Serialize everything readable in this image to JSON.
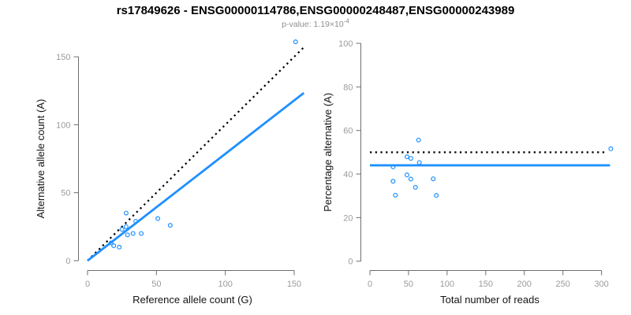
{
  "title": "rs17849626 - ENSG00000114786,ENSG00000248487,ENSG00000243989",
  "subtitle": {
    "text": "p-value: 1.19×10",
    "exponent": "-4"
  },
  "colors": {
    "accent": "#1E90FF",
    "identity_line": "#000000",
    "axis": "#6e6e6e",
    "tick_label": "#9b9b9b",
    "axis_title": "#141414",
    "subtitle": "#8f8f8f"
  },
  "chart_data": [
    {
      "type": "scatter",
      "name": "reference-vs-alternative-count",
      "xlabel": "Reference allele count (G)",
      "ylabel": "Alternative allele count (A)",
      "x_ticks": [
        0,
        50,
        100,
        150
      ],
      "y_ticks": [
        0,
        50,
        100,
        150
      ],
      "xlim": [
        0,
        157
      ],
      "ylim": [
        0,
        165
      ],
      "grid": false,
      "legend": "none",
      "point_color": "#1E90FF",
      "points": [
        [
          151,
          161
        ],
        [
          28,
          35
        ],
        [
          51,
          31
        ],
        [
          35,
          29
        ],
        [
          60,
          26
        ],
        [
          28,
          25
        ],
        [
          25,
          23
        ],
        [
          33,
          20
        ],
        [
          39,
          20
        ],
        [
          29,
          19
        ],
        [
          17,
          13
        ],
        [
          19,
          11
        ],
        [
          23,
          10
        ]
      ],
      "lines": [
        {
          "name": "identity-line",
          "label": "expected 1:1 ratio",
          "style": "dotted",
          "color": "#000000",
          "x1": 0,
          "y1": 0,
          "x2": 157,
          "y2": 157
        },
        {
          "name": "fit-line",
          "label": "observed allelic ratio fit (slope 0.786)",
          "style": "solid",
          "color": "#1E90FF",
          "x1": 0,
          "y1": 0,
          "x2": 157,
          "y2": 123.4
        }
      ]
    },
    {
      "type": "scatter",
      "name": "percentage-alternative-vs-total-reads",
      "xlabel": "Total number of reads",
      "ylabel": "Percentage alternative (A)",
      "x_ticks": [
        0,
        50,
        100,
        150,
        200,
        250,
        300
      ],
      "y_ticks": [
        0,
        20,
        40,
        60,
        80,
        100
      ],
      "xlim": [
        0,
        313
      ],
      "ylim": [
        0,
        100
      ],
      "grid": false,
      "legend": "none",
      "point_color": "#1E90FF",
      "points": [
        [
          312,
          51.6
        ],
        [
          63,
          55.6
        ],
        [
          82,
          37.8
        ],
        [
          64,
          45.3
        ],
        [
          86,
          30.2
        ],
        [
          53,
          47.2
        ],
        [
          48,
          47.9
        ],
        [
          53,
          37.7
        ],
        [
          59,
          33.9
        ],
        [
          48,
          39.6
        ],
        [
          30,
          43.3
        ],
        [
          30,
          36.7
        ],
        [
          33,
          30.3
        ]
      ],
      "lines": [
        {
          "name": "expected-50-percent-line",
          "label": "expected 50%",
          "style": "dotted",
          "color": "#000000",
          "x1": 0,
          "y1": 50,
          "x2": 305,
          "y2": 50
        },
        {
          "name": "mean-percentage-line",
          "label": "mean alternative percentage 44%",
          "style": "solid",
          "color": "#1E90FF",
          "x1": 0,
          "y1": 44,
          "x2": 311,
          "y2": 44
        }
      ]
    }
  ]
}
